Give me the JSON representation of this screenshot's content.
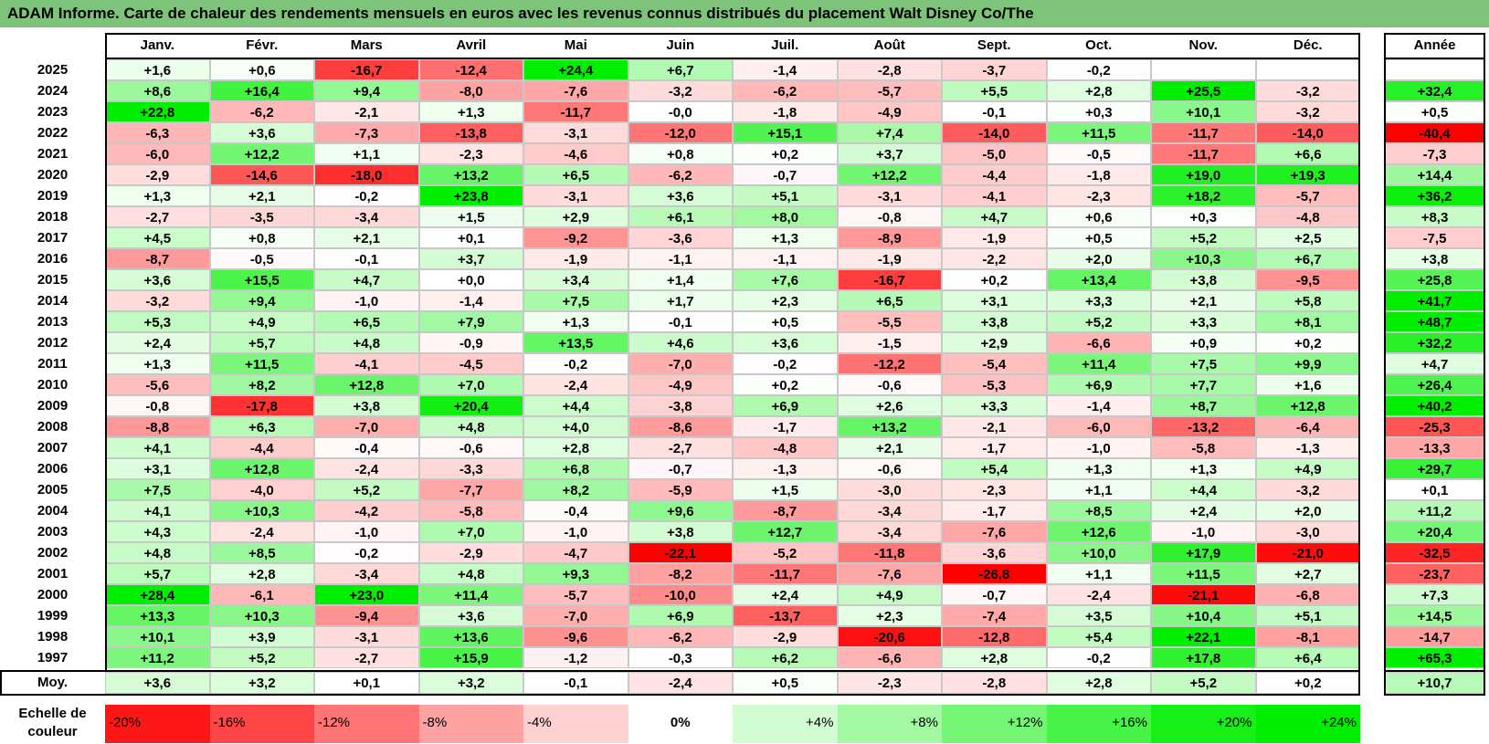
{
  "title": "ADAM Informe. Carte de chaleur des rendements mensuels en euros avec les revenus connus distribués du placement Walt Disney Co/The",
  "chart_data": {
    "type": "heatmap",
    "title": "ADAM Informe. Carte de chaleur des rendements mensuels en euros avec les revenus connus distribués du placement Walt Disney Co/The",
    "months": [
      "Janv.",
      "Févr.",
      "Mars",
      "Avril",
      "Mai",
      "Juin",
      "Juil.",
      "Août",
      "Sept.",
      "Oct.",
      "Nov.",
      "Déc."
    ],
    "year_header": "Année",
    "rows": [
      {
        "year": "2025",
        "values": [
          "+1,6",
          "+0,6",
          "-16,7",
          "-12,4",
          "+24,4",
          "+6,7",
          "-1,4",
          "-2,8",
          "-3,7",
          "-0,2",
          "",
          ""
        ],
        "annual": ""
      },
      {
        "year": "2024",
        "values": [
          "+8,6",
          "+16,4",
          "+9,4",
          "-8,0",
          "-7,6",
          "-3,2",
          "-6,2",
          "-5,7",
          "+5,5",
          "+2,8",
          "+25,5",
          "-3,2"
        ],
        "annual": "+32,4"
      },
      {
        "year": "2023",
        "values": [
          "+22,8",
          "-6,2",
          "-2,1",
          "+1,3",
          "-11,7",
          "-0,0",
          "-1,8",
          "-4,9",
          "-0,1",
          "+0,3",
          "+10,1",
          "-3,2"
        ],
        "annual": "+0,5"
      },
      {
        "year": "2022",
        "values": [
          "-6,3",
          "+3,6",
          "-7,3",
          "-13,8",
          "-3,1",
          "-12,0",
          "+15,1",
          "+7,4",
          "-14,0",
          "+11,5",
          "-11,7",
          "-14,0"
        ],
        "annual": "-40,4"
      },
      {
        "year": "2021",
        "values": [
          "-6,0",
          "+12,2",
          "+1,1",
          "-2,3",
          "-4,6",
          "+0,8",
          "+0,2",
          "+3,7",
          "-5,0",
          "-0,5",
          "-11,7",
          "+6,6"
        ],
        "annual": "-7,3"
      },
      {
        "year": "2020",
        "values": [
          "-2,9",
          "-14,6",
          "-18,0",
          "+13,2",
          "+6,5",
          "-6,2",
          "-0,7",
          "+12,2",
          "-4,4",
          "-1,8",
          "+19,0",
          "+19,3"
        ],
        "annual": "+14,4"
      },
      {
        "year": "2019",
        "values": [
          "+1,3",
          "+2,1",
          "-0,2",
          "+23,8",
          "-3,1",
          "+3,6",
          "+5,1",
          "-3,1",
          "-4,1",
          "-2,3",
          "+18,2",
          "-5,7"
        ],
        "annual": "+36,2"
      },
      {
        "year": "2018",
        "values": [
          "-2,7",
          "-3,5",
          "-3,4",
          "+1,5",
          "+2,9",
          "+6,1",
          "+8,0",
          "-0,8",
          "+4,7",
          "+0,6",
          "+0,3",
          "-4,8"
        ],
        "annual": "+8,3"
      },
      {
        "year": "2017",
        "values": [
          "+4,5",
          "+0,8",
          "+2,1",
          "+0,1",
          "-9,2",
          "-3,6",
          "+1,3",
          "-8,9",
          "-1,9",
          "+0,5",
          "+5,2",
          "+2,5"
        ],
        "annual": "-7,5"
      },
      {
        "year": "2016",
        "values": [
          "-8,7",
          "-0,5",
          "-0,1",
          "+3,7",
          "-1,9",
          "-1,1",
          "-1,1",
          "-1,9",
          "-2,2",
          "+2,0",
          "+10,3",
          "+6,7"
        ],
        "annual": "+3,8"
      },
      {
        "year": "2015",
        "values": [
          "+3,6",
          "+15,5",
          "+4,7",
          "+0,0",
          "+3,4",
          "+1,4",
          "+7,6",
          "-16,7",
          "+0,2",
          "+13,4",
          "+3,8",
          "-9,5"
        ],
        "annual": "+25,8"
      },
      {
        "year": "2014",
        "values": [
          "-3,2",
          "+9,4",
          "-1,0",
          "-1,4",
          "+7,5",
          "+1,7",
          "+2,3",
          "+6,5",
          "+3,1",
          "+3,3",
          "+2,1",
          "+5,8"
        ],
        "annual": "+41,7"
      },
      {
        "year": "2013",
        "values": [
          "+5,3",
          "+4,9",
          "+6,5",
          "+7,9",
          "+1,3",
          "-0,1",
          "+0,5",
          "-5,5",
          "+3,8",
          "+5,2",
          "+3,3",
          "+8,1"
        ],
        "annual": "+48,7"
      },
      {
        "year": "2012",
        "values": [
          "+2,4",
          "+5,7",
          "+4,8",
          "-0,9",
          "+13,5",
          "+4,6",
          "+3,6",
          "-1,5",
          "+2,9",
          "-6,6",
          "+0,9",
          "+0,2"
        ],
        "annual": "+32,2"
      },
      {
        "year": "2011",
        "values": [
          "+1,3",
          "+11,5",
          "-4,1",
          "-4,5",
          "-0,2",
          "-7,0",
          "-0,2",
          "-12,2",
          "-5,4",
          "+11,4",
          "+7,5",
          "+9,9"
        ],
        "annual": "+4,7"
      },
      {
        "year": "2010",
        "values": [
          "-5,6",
          "+8,2",
          "+12,8",
          "+7,0",
          "-2,4",
          "-4,9",
          "+0,2",
          "-0,6",
          "-5,3",
          "+6,9",
          "+7,7",
          "+1,6"
        ],
        "annual": "+26,4"
      },
      {
        "year": "2009",
        "values": [
          "-0,8",
          "-17,8",
          "+3,8",
          "+20,4",
          "+4,4",
          "-3,8",
          "+6,9",
          "+2,6",
          "+3,3",
          "-1,4",
          "+8,7",
          "+12,8"
        ],
        "annual": "+40,2"
      },
      {
        "year": "2008",
        "values": [
          "-8,8",
          "+6,3",
          "-7,0",
          "+4,8",
          "+4,0",
          "-8,6",
          "-1,7",
          "+13,2",
          "-2,1",
          "-6,0",
          "-13,2",
          "-6,4"
        ],
        "annual": "-25,3"
      },
      {
        "year": "2007",
        "values": [
          "+4,1",
          "-4,4",
          "-0,4",
          "-0,6",
          "+2,8",
          "-2,7",
          "-4,8",
          "+2,1",
          "-1,7",
          "-1,0",
          "-5,8",
          "-1,3"
        ],
        "annual": "-13,3"
      },
      {
        "year": "2006",
        "values": [
          "+3,1",
          "+12,8",
          "-2,4",
          "-3,3",
          "+6,8",
          "-0,7",
          "-1,3",
          "-0,6",
          "+5,4",
          "+1,3",
          "+1,3",
          "+4,9"
        ],
        "annual": "+29,7"
      },
      {
        "year": "2005",
        "values": [
          "+7,5",
          "-4,0",
          "+5,2",
          "-7,7",
          "+8,2",
          "-5,9",
          "+1,5",
          "-3,0",
          "-2,3",
          "+1,1",
          "+4,4",
          "-3,2"
        ],
        "annual": "+0,1"
      },
      {
        "year": "2004",
        "values": [
          "+4,1",
          "+10,3",
          "-4,2",
          "-5,8",
          "-0,4",
          "+9,6",
          "-8,7",
          "-3,4",
          "-1,7",
          "+8,5",
          "+2,4",
          "+2,0"
        ],
        "annual": "+11,2"
      },
      {
        "year": "2003",
        "values": [
          "+4,3",
          "-2,4",
          "-1,0",
          "+7,0",
          "-1,0",
          "+3,8",
          "+12,7",
          "-3,4",
          "-7,6",
          "+12,6",
          "-1,0",
          "-3,0"
        ],
        "annual": "+20,4"
      },
      {
        "year": "2002",
        "values": [
          "+4,8",
          "+8,5",
          "-0,2",
          "-2,9",
          "-4,7",
          "-22,1",
          "-5,2",
          "-11,8",
          "-3,6",
          "+10,0",
          "+17,9",
          "-21,0"
        ],
        "annual": "-32,5"
      },
      {
        "year": "2001",
        "values": [
          "+5,7",
          "+2,8",
          "-3,4",
          "+4,8",
          "+9,3",
          "-8,2",
          "-11,7",
          "-7,6",
          "-26,8",
          "+1,1",
          "+11,5",
          "+2,7"
        ],
        "annual": "-23,7"
      },
      {
        "year": "2000",
        "values": [
          "+28,4",
          "-6,1",
          "+23,0",
          "+11,4",
          "-5,7",
          "-10,0",
          "+2,4",
          "+4,9",
          "-0,7",
          "-2,4",
          "-21,1",
          "-6,8"
        ],
        "annual": "+7,3"
      },
      {
        "year": "1999",
        "values": [
          "+13,3",
          "+10,3",
          "-9,4",
          "+3,6",
          "-7,0",
          "+6,9",
          "-13,7",
          "+2,3",
          "-7,4",
          "+3,5",
          "+10,4",
          "+5,1"
        ],
        "annual": "+14,5"
      },
      {
        "year": "1998",
        "values": [
          "+10,1",
          "+3,9",
          "-3,1",
          "+13,6",
          "-9,6",
          "-6,2",
          "-2,9",
          "-20,6",
          "-12,8",
          "+5,4",
          "+22,1",
          "-8,1"
        ],
        "annual": "-14,7"
      },
      {
        "year": "1997",
        "values": [
          "+11,2",
          "+5,2",
          "-2,7",
          "+15,9",
          "-1,2",
          "-0,3",
          "+6,2",
          "-6,6",
          "+2,8",
          "-0,2",
          "+17,8",
          "+6,4"
        ],
        "annual": "+65,3"
      }
    ],
    "average": {
      "label": "Moy.",
      "values": [
        "+3,6",
        "+3,2",
        "+0,1",
        "+3,2",
        "-0,1",
        "-2,4",
        "+0,5",
        "-2,3",
        "-2,8",
        "+2,8",
        "+5,2",
        "+0,2"
      ],
      "annual": "+10,7"
    },
    "color_scale": {
      "label": "Echelle de couleur",
      "entries": [
        "-20%",
        "-16%",
        "-12%",
        "-8%",
        "-4%",
        "0%",
        "+4%",
        "+8%",
        "+12%",
        "+16%",
        "+20%",
        "+24%"
      ],
      "negative_color": "#ff0000",
      "neutral_color": "#ffffff",
      "positive_color": "#00ee00"
    }
  }
}
